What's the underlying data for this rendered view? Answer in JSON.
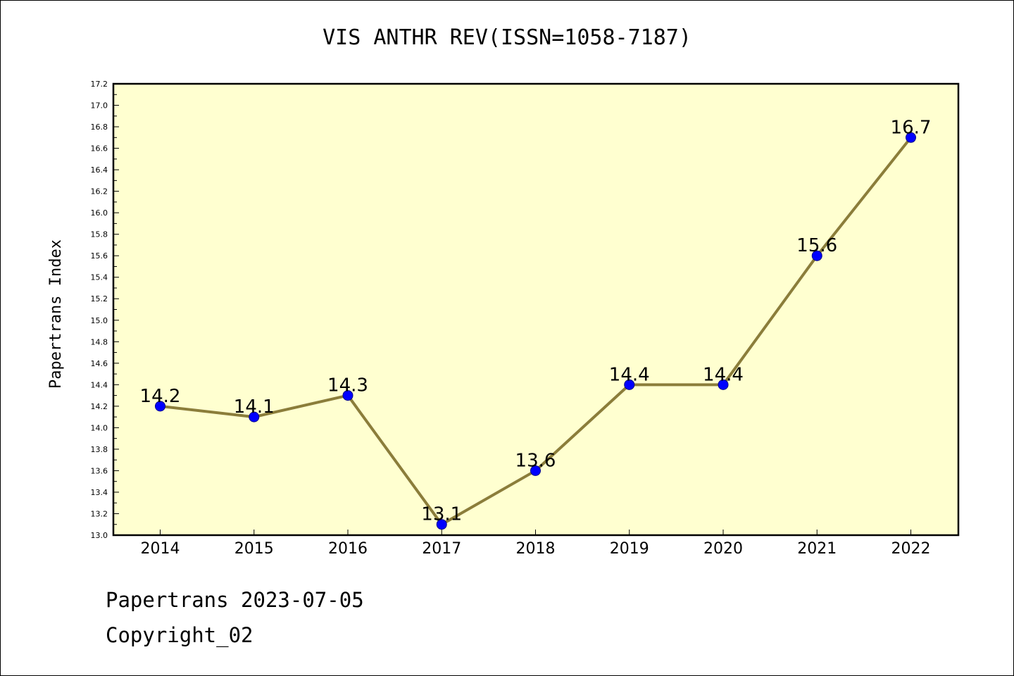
{
  "chart_data": {
    "type": "line",
    "title": "VIS ANTHR REV(ISSN=1058-7187)",
    "ylabel": "Papertrans Index",
    "xlabel": "",
    "categories": [
      "2014",
      "2015",
      "2016",
      "2017",
      "2018",
      "2019",
      "2020",
      "2021",
      "2022"
    ],
    "series": [
      {
        "values": [
          14.2,
          14.1,
          14.3,
          13.1,
          13.6,
          14.4,
          14.4,
          15.6,
          16.7
        ]
      }
    ],
    "data_labels": [
      "14.2",
      "14.1",
      "14.3",
      "13.1",
      "13.6",
      "14.4",
      "14.4",
      "15.6",
      "16.7"
    ],
    "ylim": [
      13.0,
      17.2
    ],
    "yticks": [
      "13.0",
      "13.2",
      "13.4",
      "13.6",
      "13.8",
      "14.0",
      "14.2",
      "14.4",
      "14.6",
      "14.8",
      "15.0",
      "15.2",
      "15.4",
      "15.6",
      "15.8",
      "16.0",
      "16.2",
      "16.4",
      "16.6",
      "16.8",
      "17.0",
      "17.2"
    ],
    "grid": false,
    "colors": {
      "plot_background": "#ffffd0",
      "line": "#8b7d3a",
      "marker": "#0000ff"
    }
  },
  "footer": {
    "line1": "Papertrans 2023-07-05",
    "line2": "Copyright_02"
  }
}
